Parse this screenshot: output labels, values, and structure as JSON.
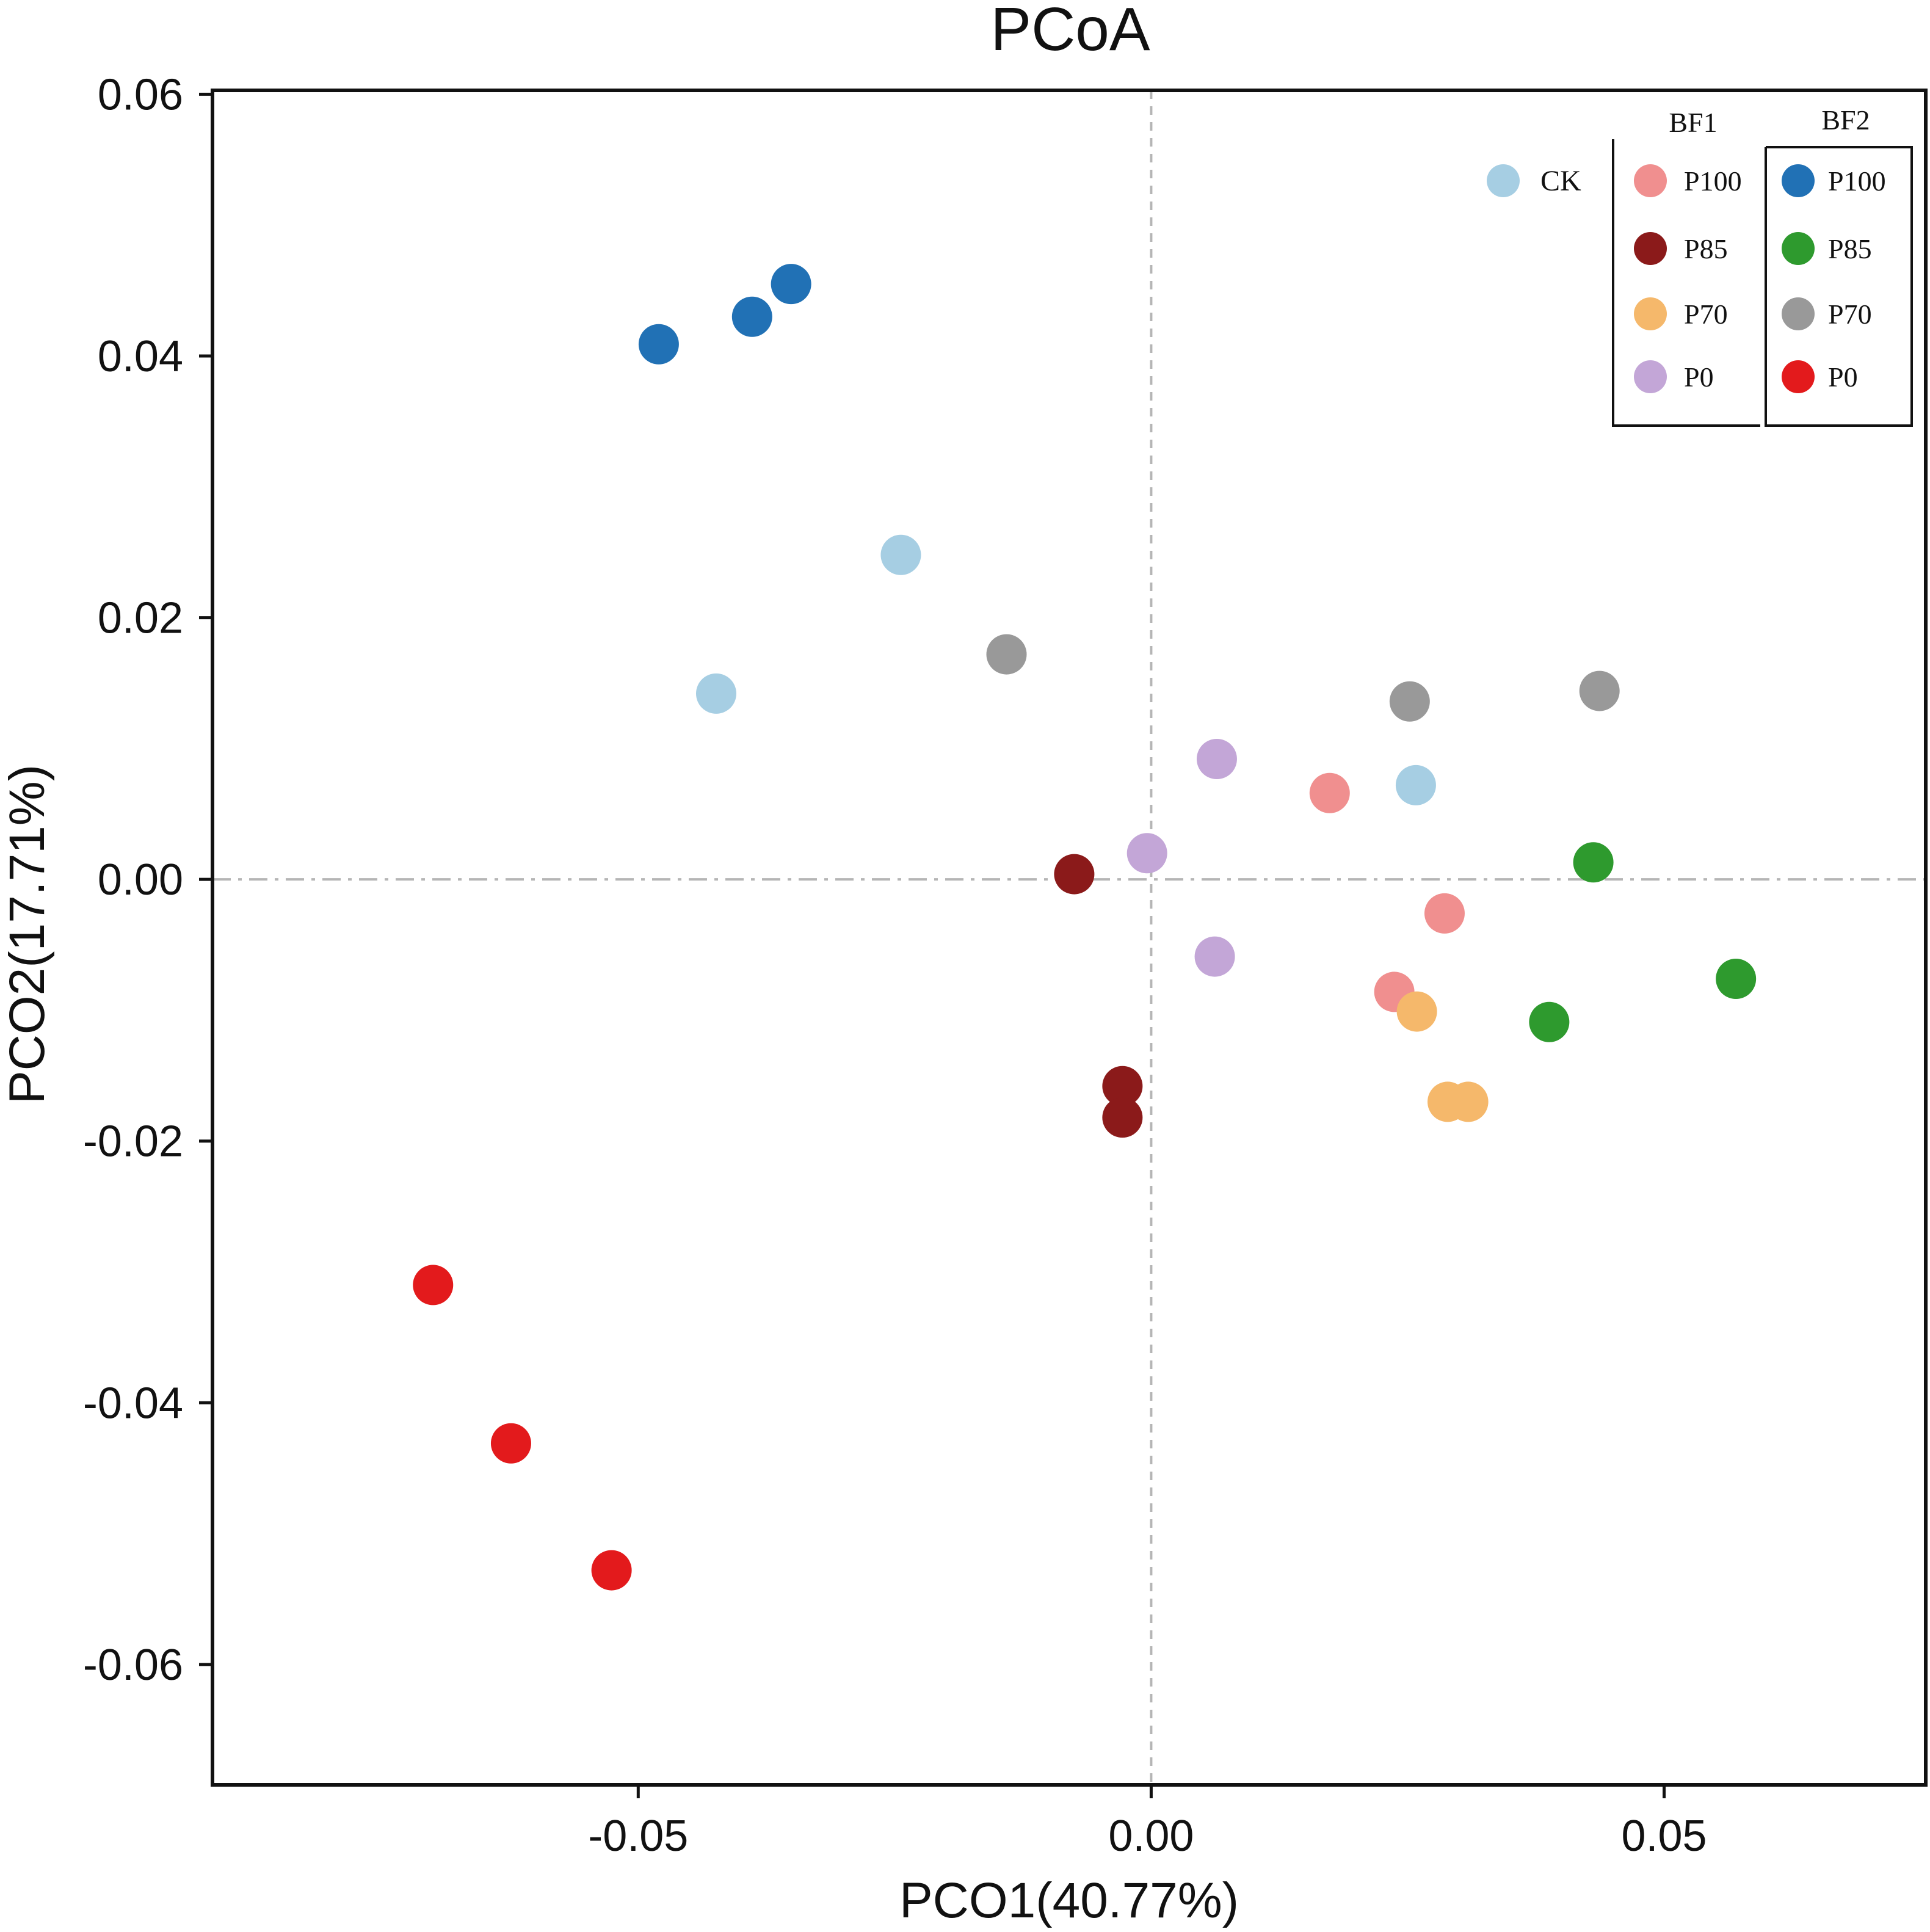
{
  "chart_data": {
    "type": "scatter",
    "title": "PCoA",
    "xlabel": "PCO1(40.77%)",
    "ylabel": "PCO2(17.71%)",
    "xlim": [
      -0.0915,
      0.0755
    ],
    "ylim": [
      -0.0692,
      0.0603
    ],
    "x_ticks": [
      -0.05,
      0.0,
      0.05
    ],
    "x_tick_labels": [
      "-0.05",
      "0.00",
      "0.05"
    ],
    "y_ticks": [
      0.06,
      0.04,
      0.02,
      0.0,
      -0.02,
      -0.04,
      -0.06
    ],
    "y_tick_labels": [
      "0.06",
      "0.04",
      "0.02",
      "0.00",
      "-0.02",
      "-0.04",
      "-0.06"
    ],
    "reference_lines": {
      "x": 0.0,
      "y": 0.0
    },
    "grid": false,
    "legend_position": "top-right",
    "legend": {
      "ck": {
        "label": "CK",
        "series": "CK"
      },
      "groups": [
        {
          "title": "BF1",
          "entries": [
            {
              "label": "P100",
              "series": "BF1-P100"
            },
            {
              "label": "P85",
              "series": "BF1-P85"
            },
            {
              "label": "P70",
              "series": "BF1-P70"
            },
            {
              "label": "P0",
              "series": "BF1-P0"
            }
          ]
        },
        {
          "title": "BF2",
          "entries": [
            {
              "label": "P100",
              "series": "BF2-P100"
            },
            {
              "label": "P85",
              "series": "BF2-P85"
            },
            {
              "label": "P70",
              "series": "BF2-P70"
            },
            {
              "label": "P0",
              "series": "BF2-P0"
            }
          ]
        }
      ]
    },
    "series": [
      {
        "name": "CK",
        "color": "#a6cee3",
        "points": [
          [
            -0.0424,
            0.0142
          ],
          [
            -0.0244,
            0.0248
          ],
          [
            0.0258,
            0.0072
          ]
        ]
      },
      {
        "name": "BF1-P100",
        "color": "#f08f8f",
        "points": [
          [
            0.0174,
            0.0066
          ],
          [
            0.0286,
            -0.0026
          ],
          [
            0.0237,
            -0.0086
          ]
        ]
      },
      {
        "name": "BF1-P85",
        "color": "#8b1a1a",
        "points": [
          [
            -0.0075,
            0.0004
          ],
          [
            -0.0028,
            -0.0158
          ],
          [
            -0.0028,
            -0.0182
          ]
        ]
      },
      {
        "name": "BF1-P70",
        "color": "#f5b86b",
        "points": [
          [
            0.0259,
            -0.0101
          ],
          [
            0.0289,
            -0.017
          ],
          [
            0.0309,
            -0.017
          ]
        ]
      },
      {
        "name": "BF1-P0",
        "color": "#c3a6d7",
        "points": [
          [
            0.0064,
            0.0092
          ],
          [
            -0.0004,
            0.002
          ],
          [
            0.0062,
            -0.0059
          ]
        ]
      },
      {
        "name": "BF2-P100",
        "color": "#2171b5",
        "points": [
          [
            -0.048,
            0.0409
          ],
          [
            -0.0389,
            0.043
          ],
          [
            -0.0351,
            0.0455
          ]
        ]
      },
      {
        "name": "BF2-P85",
        "color": "#2e9a2e",
        "points": [
          [
            0.0431,
            0.0013
          ],
          [
            0.0388,
            -0.0109
          ],
          [
            0.057,
            -0.0076
          ]
        ]
      },
      {
        "name": "BF2-P70",
        "color": "#999999",
        "points": [
          [
            -0.0141,
            0.0172
          ],
          [
            0.0252,
            0.0136
          ],
          [
            0.0437,
            0.0144
          ]
        ]
      },
      {
        "name": "BF2-P0",
        "color": "#e31a1c",
        "points": [
          [
            -0.07,
            -0.031
          ],
          [
            -0.0624,
            -0.0431
          ],
          [
            -0.0526,
            -0.0528
          ]
        ]
      }
    ]
  }
}
